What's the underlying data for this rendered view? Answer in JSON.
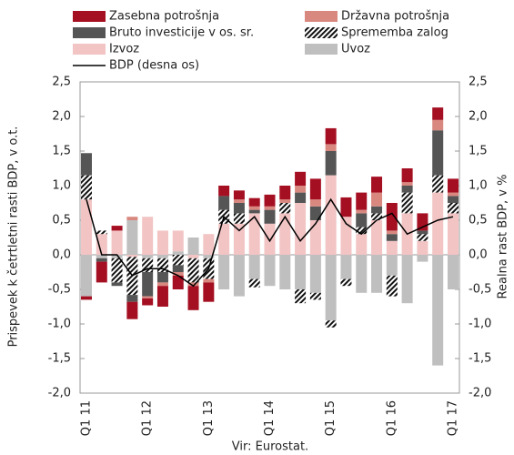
{
  "chart_data": {
    "type": "stacked-bar-line",
    "source": "Vir: Eurostat.",
    "ylabel": "Prispevek k četrtletni rasti BDP, v o.t.",
    "y2label": "Realna rast BDP, v %",
    "categories": [
      "Q1 11",
      null,
      null,
      null,
      "Q1 12",
      null,
      null,
      null,
      "Q1 13",
      null,
      null,
      null,
      "Q1 14",
      null,
      null,
      null,
      "Q1 15",
      null,
      null,
      null,
      "Q1 16",
      null,
      null,
      null,
      "Q1 17"
    ],
    "series": [
      {
        "name": "Zasebna potrošnja",
        "color": "#a50f22",
        "values": [
          -0.05,
          -0.3,
          0.07,
          -0.25,
          -0.1,
          -0.3,
          -0.2,
          -0.35,
          -0.28,
          0.15,
          0.13,
          0.12,
          0.17,
          0.2,
          0.2,
          0.3,
          0.23,
          0.28,
          0.25,
          0.23,
          0.4,
          0.2,
          0.25,
          0.18,
          0.2
        ]
      },
      {
        "name": "Državna potrošnja",
        "color": "#d98880",
        "values": [
          0,
          0,
          0,
          0.05,
          -0.03,
          -0.05,
          -0.05,
          -0.05,
          -0.05,
          0,
          0.05,
          0.05,
          0.05,
          0.05,
          0.1,
          0.1,
          0.1,
          0,
          0.05,
          0.2,
          0.05,
          0.05,
          0,
          0.15,
          0.05
        ]
      },
      {
        "name": "Bruto investicije v os. sr.",
        "color": "#555555",
        "values": [
          0.32,
          -0.05,
          -0.05,
          -0.1,
          -0.35,
          -0.15,
          -0.1,
          0,
          0,
          0.2,
          0.15,
          0.05,
          0.2,
          0,
          0.15,
          0.2,
          0.35,
          0,
          0.2,
          0.1,
          0.1,
          0.1,
          0.05,
          0.65,
          0.1
        ]
      },
      {
        "name": "Sprememba zalog",
        "color": "#111111",
        "pattern": "hatch",
        "values": [
          0.35,
          0.05,
          -0.35,
          -0.55,
          -0.2,
          -0.2,
          -0.15,
          -0.35,
          -0.3,
          0.2,
          0.15,
          -0.12,
          0,
          0.15,
          -0.2,
          -0.1,
          -0.1,
          -0.1,
          0.1,
          0.1,
          -0.3,
          0.3,
          0.1,
          0.25,
          0.15
        ]
      },
      {
        "name": "Izvoz",
        "color": "#f2c4c4",
        "values": [
          0.8,
          0.3,
          0.35,
          -0.03,
          0.55,
          0.35,
          0.3,
          -0.05,
          0.3,
          0.45,
          0.45,
          0.6,
          0.45,
          0.6,
          0.75,
          0.5,
          1.15,
          0.55,
          0.3,
          0.5,
          0.2,
          0.6,
          0.2,
          0.9,
          0.6
        ]
      },
      {
        "name": "Uvoz",
        "color": "#bfbfbf",
        "values": [
          -0.6,
          -0.05,
          -0.05,
          0.5,
          -0.05,
          -0.05,
          0.05,
          0.25,
          -0.05,
          -0.5,
          -0.6,
          -0.35,
          -0.45,
          -0.5,
          -0.5,
          -0.55,
          -0.95,
          -0.35,
          -0.55,
          -0.55,
          -0.3,
          -0.7,
          -0.1,
          -1.6,
          -0.5
        ]
      },
      {
        "name": "BDP (desna os)",
        "color": "#000000",
        "axis": "y2",
        "kind": "line",
        "values": [
          0.8,
          0.0,
          0.0,
          -0.3,
          -0.2,
          -0.2,
          -0.3,
          -0.45,
          -0.2,
          0.55,
          0.35,
          0.55,
          0.2,
          0.55,
          0.2,
          0.45,
          0.8,
          0.45,
          0.3,
          0.5,
          0.6,
          0.3,
          0.4,
          0.5,
          0.55
        ]
      }
    ],
    "ylim": [
      -2.0,
      2.5
    ],
    "yticks": [
      {
        "value": -2.0,
        "label": "-2,0"
      },
      {
        "value": -1.5,
        "label": "-1,5"
      },
      {
        "value": -1.0,
        "label": "-1,0"
      },
      {
        "value": -0.5,
        "label": "-0,5"
      },
      {
        "value": 0.0,
        "label": "0,0"
      },
      {
        "value": 0.5,
        "label": "0,5"
      },
      {
        "value": 1.0,
        "label": "1,0"
      },
      {
        "value": 1.5,
        "label": "1,5"
      },
      {
        "value": 2.0,
        "label": "2,0"
      },
      {
        "value": 2.5,
        "label": "2,5"
      }
    ],
    "y2lim": [
      -2.0,
      2.5
    ],
    "y2ticks": [
      {
        "value": -2.0,
        "label": "-2,0"
      },
      {
        "value": -1.5,
        "label": "-1,5"
      },
      {
        "value": -1.0,
        "label": "-1,0"
      },
      {
        "value": -0.5,
        "label": "-0,5"
      },
      {
        "value": 0.0,
        "label": "0,0"
      },
      {
        "value": 0.5,
        "label": "0,5"
      },
      {
        "value": 1.0,
        "label": "1,0"
      },
      {
        "value": 1.5,
        "label": "1,5"
      },
      {
        "value": 2.0,
        "label": "2,0"
      },
      {
        "value": 2.5,
        "label": "2,5"
      }
    ],
    "grid": false
  }
}
